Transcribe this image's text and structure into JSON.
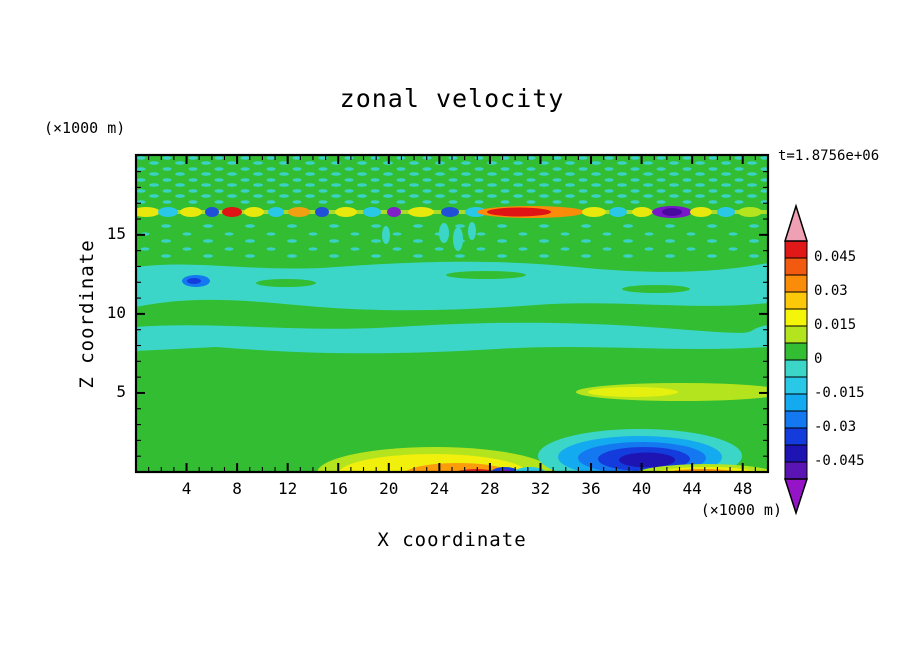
{
  "page": {
    "background": "#ffffff"
  },
  "chart": {
    "title": "zonal velocity",
    "time_label": "t=1.8756e+06",
    "x_axis": {
      "label": "X coordinate",
      "units": "(×1000 m)"
    },
    "y_axis": {
      "label": "Z coordinate",
      "units": "(×1000 m)"
    },
    "colorbar": {
      "tick_labels": [
        "0.045",
        "0.03",
        "0.015",
        "0",
        "-0.015",
        "-0.03",
        "-0.045"
      ],
      "band_colors_top_to_bottom": [
        "#e11818",
        "#f25a0f",
        "#fb8c0a",
        "#fcc80a",
        "#f5f50a",
        "#b4e41e",
        "#33bd33",
        "#3cd6c8",
        "#28c8e6",
        "#14aaf0",
        "#1478f0",
        "#143cdc",
        "#1e14b4",
        "#5a14b4"
      ],
      "arrow_top_color": "#f0a0b4",
      "arrow_bottom_color": "#9614c8"
    }
  },
  "chart_data": {
    "type": "heatmap",
    "title": "zonal velocity",
    "xlabel": "X coordinate (×1000 m)",
    "ylabel": "Z coordinate (×1000 m)",
    "x_ticks": [
      4,
      8,
      12,
      16,
      20,
      24,
      28,
      32,
      36,
      40,
      44,
      48
    ],
    "y_ticks": [
      5,
      10,
      15
    ],
    "xlim": [
      0,
      50
    ],
    "ylim": [
      0,
      20
    ],
    "time_annotation": "t=1.8756e+06",
    "contour_levels": [
      -0.045,
      -0.03,
      -0.015,
      0,
      0.015,
      0.03,
      0.045
    ],
    "legend_position": "right colorbar with over/under arrows",
    "field_summary": [
      {
        "region": "z≈16-17, full width",
        "value": "thin turbulent band of alternating small extrema; strongest positive ≈+0.05 (red/orange) near x≈27-31, strong negative ≈-0.05 (purple) near x≈41-42, many ±0.02-0.03 flecks"
      },
      {
        "region": "z≈13.5-20",
        "value": "weak background ≈+0.005 with speckled ≈-0.005 patches"
      },
      {
        "region": "z≈10.5-13",
        "value": "weak negative band ≈-0.005 to -0.01; local minimum ≈-0.03 near x≈4.5, z≈12.5"
      },
      {
        "region": "z≈8-9",
        "value": "weak negative band ≈-0.005 to -0.01"
      },
      {
        "region": "z≈5, x≈36-50",
        "value": "weak positive band ≈+0.01"
      },
      {
        "region": "z≈0-2, x≈16-30",
        "value": "positive surface anomaly up to ≈+0.05 near x≈27 with small negative spot ≈-0.05 at x≈29"
      },
      {
        "region": "z≈0-3, x≈33-46",
        "value": "strong negative anomaly, minimum ≈-0.05 near x≈40, z≈1.5"
      },
      {
        "region": "z≈0-1, x≈42-47",
        "value": "positive surface anomaly ≈+0.045"
      },
      {
        "region": "elsewhere",
        "value": "weak positive background ≈+0.005 (green)"
      }
    ]
  }
}
